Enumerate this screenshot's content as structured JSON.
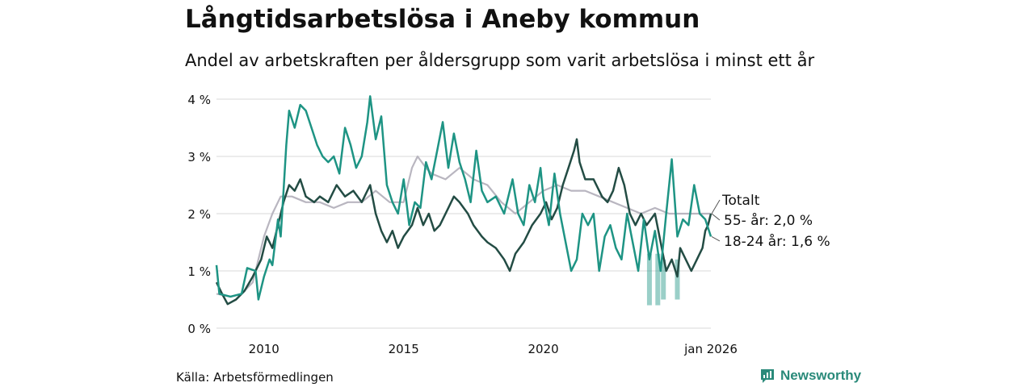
{
  "title": "Långtidsarbetslösa i Aneby kommun",
  "subtitle": "Andel av arbetskraften per åldersgrupp som varit arbetslösa i minst ett år",
  "source": "Källa: Arbetsförmedlingen",
  "brand": "Newsworthy",
  "colors": {
    "total": "#b9b6c0",
    "age55": "#234c44",
    "age18": "#1e9484",
    "grid": "#d9d9d9",
    "brand": "#2a8a7a"
  },
  "chart_data": {
    "type": "line",
    "title": "Långtidsarbetslösa i Aneby kommun",
    "xlabel": "",
    "ylabel": "",
    "xlim": [
      2008.3,
      2026.0
    ],
    "ylim": [
      0,
      4
    ],
    "x_ticks": [
      {
        "value": 2010,
        "label": "2010"
      },
      {
        "value": 2015,
        "label": "2015"
      },
      {
        "value": 2020,
        "label": "2020"
      },
      {
        "value": 2026.0,
        "label": "jan 2026"
      }
    ],
    "y_ticks": [
      {
        "value": 0,
        "label": "0 %"
      },
      {
        "value": 1,
        "label": "1 %"
      },
      {
        "value": 2,
        "label": "2 %"
      },
      {
        "value": 3,
        "label": "3 %"
      },
      {
        "value": 4,
        "label": "4 %"
      }
    ],
    "series": [
      {
        "name": "Totalt",
        "label": "Totalt",
        "color": "#b9b6c0",
        "points": [
          [
            2008.3,
            0.6
          ],
          [
            2008.8,
            0.55
          ],
          [
            2009.2,
            0.6
          ],
          [
            2009.6,
            0.8
          ],
          [
            2010.0,
            1.6
          ],
          [
            2010.3,
            2.0
          ],
          [
            2010.6,
            2.3
          ],
          [
            2011.0,
            2.3
          ],
          [
            2011.5,
            2.2
          ],
          [
            2012.0,
            2.2
          ],
          [
            2012.5,
            2.1
          ],
          [
            2013.0,
            2.2
          ],
          [
            2013.5,
            2.2
          ],
          [
            2014.0,
            2.4
          ],
          [
            2014.5,
            2.2
          ],
          [
            2015.0,
            2.2
          ],
          [
            2015.3,
            2.8
          ],
          [
            2015.5,
            3.0
          ],
          [
            2015.8,
            2.8
          ],
          [
            2016.0,
            2.7
          ],
          [
            2016.5,
            2.6
          ],
          [
            2017.0,
            2.8
          ],
          [
            2017.5,
            2.6
          ],
          [
            2018.0,
            2.5
          ],
          [
            2018.5,
            2.2
          ],
          [
            2019.0,
            2.0
          ],
          [
            2019.5,
            2.2
          ],
          [
            2020.0,
            2.4
          ],
          [
            2020.5,
            2.5
          ],
          [
            2021.0,
            2.4
          ],
          [
            2021.5,
            2.4
          ],
          [
            2022.0,
            2.3
          ],
          [
            2022.5,
            2.2
          ],
          [
            2023.0,
            2.1
          ],
          [
            2023.5,
            2.0
          ],
          [
            2024.0,
            2.1
          ],
          [
            2024.5,
            2.0
          ],
          [
            2025.0,
            2.0
          ],
          [
            2025.5,
            2.0
          ],
          [
            2026.0,
            2.0
          ]
        ]
      },
      {
        "name": "55- år",
        "label": "55- år: 2,0 %",
        "color": "#234c44",
        "points": [
          [
            2008.3,
            0.8
          ],
          [
            2008.5,
            0.6
          ],
          [
            2008.7,
            0.42
          ],
          [
            2009.0,
            0.5
          ],
          [
            2009.3,
            0.65
          ],
          [
            2009.6,
            0.9
          ],
          [
            2009.9,
            1.2
          ],
          [
            2010.1,
            1.6
          ],
          [
            2010.3,
            1.4
          ],
          [
            2010.5,
            1.8
          ],
          [
            2010.7,
            2.2
          ],
          [
            2010.9,
            2.5
          ],
          [
            2011.1,
            2.4
          ],
          [
            2011.3,
            2.6
          ],
          [
            2011.5,
            2.3
          ],
          [
            2011.8,
            2.2
          ],
          [
            2012.0,
            2.3
          ],
          [
            2012.3,
            2.2
          ],
          [
            2012.6,
            2.5
          ],
          [
            2012.9,
            2.3
          ],
          [
            2013.2,
            2.4
          ],
          [
            2013.5,
            2.2
          ],
          [
            2013.8,
            2.5
          ],
          [
            2014.0,
            2.0
          ],
          [
            2014.2,
            1.7
          ],
          [
            2014.4,
            1.5
          ],
          [
            2014.6,
            1.7
          ],
          [
            2014.8,
            1.4
          ],
          [
            2015.0,
            1.6
          ],
          [
            2015.3,
            1.8
          ],
          [
            2015.5,
            2.1
          ],
          [
            2015.7,
            1.8
          ],
          [
            2015.9,
            2.0
          ],
          [
            2016.1,
            1.7
          ],
          [
            2016.3,
            1.8
          ],
          [
            2016.6,
            2.1
          ],
          [
            2016.8,
            2.3
          ],
          [
            2017.0,
            2.2
          ],
          [
            2017.3,
            2.0
          ],
          [
            2017.5,
            1.8
          ],
          [
            2017.8,
            1.6
          ],
          [
            2018.0,
            1.5
          ],
          [
            2018.3,
            1.4
          ],
          [
            2018.6,
            1.2
          ],
          [
            2018.8,
            1.0
          ],
          [
            2019.0,
            1.3
          ],
          [
            2019.3,
            1.5
          ],
          [
            2019.6,
            1.8
          ],
          [
            2019.9,
            2.0
          ],
          [
            2020.1,
            2.2
          ],
          [
            2020.3,
            1.9
          ],
          [
            2020.5,
            2.1
          ],
          [
            2020.7,
            2.5
          ],
          [
            2020.9,
            2.8
          ],
          [
            2021.1,
            3.1
          ],
          [
            2021.2,
            3.3
          ],
          [
            2021.3,
            2.9
          ],
          [
            2021.5,
            2.6
          ],
          [
            2021.8,
            2.6
          ],
          [
            2022.1,
            2.3
          ],
          [
            2022.3,
            2.2
          ],
          [
            2022.5,
            2.4
          ],
          [
            2022.7,
            2.8
          ],
          [
            2022.9,
            2.5
          ],
          [
            2023.1,
            2.0
          ],
          [
            2023.3,
            1.8
          ],
          [
            2023.5,
            2.0
          ],
          [
            2023.7,
            1.8
          ],
          [
            2024.0,
            2.0
          ],
          [
            2024.2,
            1.5
          ],
          [
            2024.4,
            1.0
          ],
          [
            2024.6,
            1.2
          ],
          [
            2024.8,
            0.9
          ],
          [
            2024.9,
            1.4
          ],
          [
            2025.1,
            1.2
          ],
          [
            2025.3,
            1.0
          ],
          [
            2025.5,
            1.2
          ],
          [
            2025.7,
            1.4
          ],
          [
            2025.8,
            1.7
          ],
          [
            2025.9,
            1.8
          ],
          [
            2026.0,
            2.0
          ]
        ]
      },
      {
        "name": "18-24 år",
        "label": "18-24 år: 1,6 %",
        "color": "#1e9484",
        "points": [
          [
            2008.3,
            1.1
          ],
          [
            2008.4,
            0.6
          ],
          [
            2008.8,
            0.55
          ],
          [
            2009.2,
            0.6
          ],
          [
            2009.4,
            1.05
          ],
          [
            2009.7,
            1.0
          ],
          [
            2009.8,
            0.5
          ],
          [
            2010.0,
            0.9
          ],
          [
            2010.2,
            1.2
          ],
          [
            2010.3,
            1.1
          ],
          [
            2010.5,
            1.9
          ],
          [
            2010.6,
            1.6
          ],
          [
            2010.7,
            2.4
          ],
          [
            2010.8,
            3.2
          ],
          [
            2010.9,
            3.8
          ],
          [
            2011.1,
            3.5
          ],
          [
            2011.3,
            3.9
          ],
          [
            2011.5,
            3.8
          ],
          [
            2011.7,
            3.5
          ],
          [
            2011.9,
            3.2
          ],
          [
            2012.1,
            3.0
          ],
          [
            2012.3,
            2.9
          ],
          [
            2012.5,
            3.0
          ],
          [
            2012.7,
            2.7
          ],
          [
            2012.9,
            3.5
          ],
          [
            2013.1,
            3.2
          ],
          [
            2013.3,
            2.8
          ],
          [
            2013.5,
            3.0
          ],
          [
            2013.7,
            3.6
          ],
          [
            2013.8,
            4.05
          ],
          [
            2014.0,
            3.3
          ],
          [
            2014.2,
            3.7
          ],
          [
            2014.4,
            2.5
          ],
          [
            2014.6,
            2.2
          ],
          [
            2014.8,
            2.0
          ],
          [
            2015.0,
            2.6
          ],
          [
            2015.2,
            1.8
          ],
          [
            2015.4,
            2.2
          ],
          [
            2015.6,
            2.1
          ],
          [
            2015.8,
            2.9
          ],
          [
            2016.0,
            2.6
          ],
          [
            2016.2,
            3.1
          ],
          [
            2016.4,
            3.6
          ],
          [
            2016.6,
            2.8
          ],
          [
            2016.8,
            3.4
          ],
          [
            2017.0,
            2.9
          ],
          [
            2017.2,
            2.6
          ],
          [
            2017.4,
            2.2
          ],
          [
            2017.6,
            3.1
          ],
          [
            2017.8,
            2.4
          ],
          [
            2018.0,
            2.2
          ],
          [
            2018.3,
            2.3
          ],
          [
            2018.6,
            2.0
          ],
          [
            2018.9,
            2.6
          ],
          [
            2019.1,
            2.0
          ],
          [
            2019.3,
            1.8
          ],
          [
            2019.5,
            2.5
          ],
          [
            2019.7,
            2.2
          ],
          [
            2019.9,
            2.8
          ],
          [
            2020.0,
            2.3
          ],
          [
            2020.2,
            1.8
          ],
          [
            2020.4,
            2.7
          ],
          [
            2020.6,
            2.0
          ],
          [
            2020.8,
            1.5
          ],
          [
            2021.0,
            1.0
          ],
          [
            2021.2,
            1.2
          ],
          [
            2021.4,
            2.0
          ],
          [
            2021.6,
            1.8
          ],
          [
            2021.8,
            2.0
          ],
          [
            2022.0,
            1.0
          ],
          [
            2022.2,
            1.6
          ],
          [
            2022.4,
            1.8
          ],
          [
            2022.6,
            1.4
          ],
          [
            2022.8,
            1.2
          ],
          [
            2023.0,
            2.0
          ],
          [
            2023.2,
            1.5
          ],
          [
            2023.4,
            1.0
          ],
          [
            2023.6,
            1.9
          ],
          [
            2023.8,
            1.2
          ],
          [
            2024.0,
            1.7
          ],
          [
            2024.2,
            1.0
          ],
          [
            2024.4,
            2.0
          ],
          [
            2024.6,
            2.95
          ],
          [
            2024.8,
            1.6
          ],
          [
            2025.0,
            1.9
          ],
          [
            2025.2,
            1.8
          ],
          [
            2025.4,
            2.5
          ],
          [
            2025.6,
            2.0
          ],
          [
            2025.8,
            1.9
          ],
          [
            2026.0,
            1.6
          ]
        ]
      }
    ],
    "uncertainty_band_18_24": [
      [
        2023.8,
        0.4,
        1.3
      ],
      [
        2024.1,
        0.4,
        1.3
      ],
      [
        2024.3,
        0.5,
        1.2
      ],
      [
        2024.8,
        0.5,
        1.2
      ]
    ]
  }
}
